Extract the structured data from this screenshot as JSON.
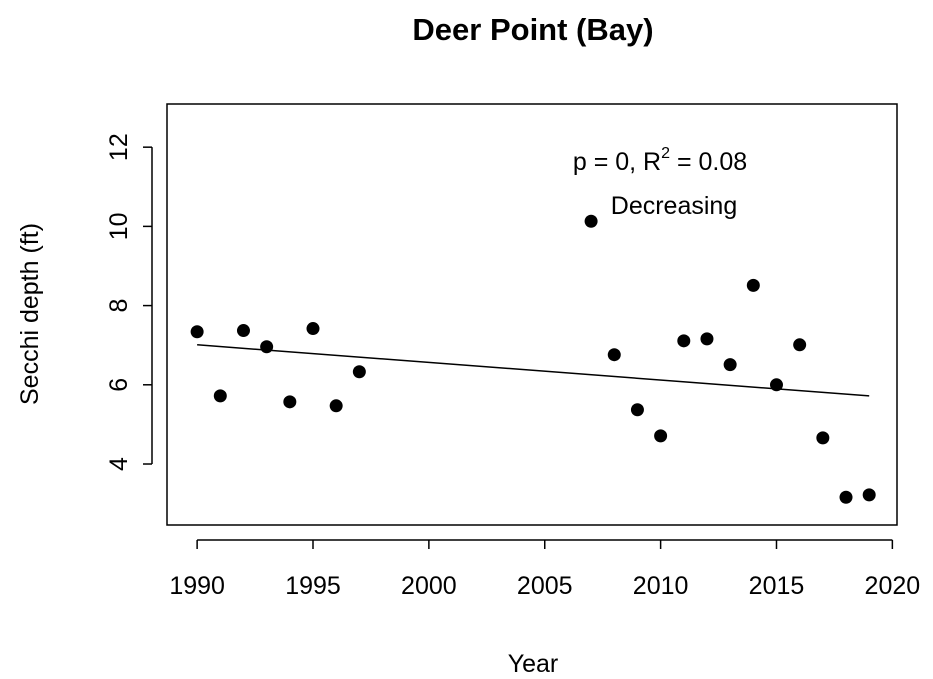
{
  "chart_data": {
    "type": "scatter",
    "title": "Deer Point (Bay)",
    "x_label": "Year",
    "y_label": "Secchi depth (ft)",
    "x": [
      1990,
      1991,
      1992,
      1993,
      1994,
      1995,
      1996,
      1997,
      2007,
      2008,
      2009,
      2010,
      2011,
      2012,
      2013,
      2014,
      2015,
      2016,
      2017,
      2018,
      2019
    ],
    "values": [
      7.34,
      5.72,
      7.37,
      6.96,
      5.57,
      7.42,
      5.47,
      6.33,
      10.13,
      6.76,
      5.37,
      4.71,
      7.11,
      7.16,
      6.51,
      8.51,
      6.0,
      7.01,
      4.66,
      3.16,
      3.22
    ],
    "color": "#000000",
    "trend": {
      "x": [
        1990,
        2019
      ],
      "values": [
        7.01,
        5.72
      ]
    },
    "annotation": {
      "stat": [
        "p = 0, R",
        "2",
        " = 0.08"
      ],
      "direction": "Decreasing"
    },
    "xlim": [
      1988.7,
      2020.2
    ],
    "ylim": [
      2.46,
      13.09
    ],
    "xticks": [
      1990,
      1995,
      2000,
      2005,
      2010,
      2015,
      2020
    ],
    "yticks": [
      4,
      6,
      8,
      10,
      12
    ]
  }
}
